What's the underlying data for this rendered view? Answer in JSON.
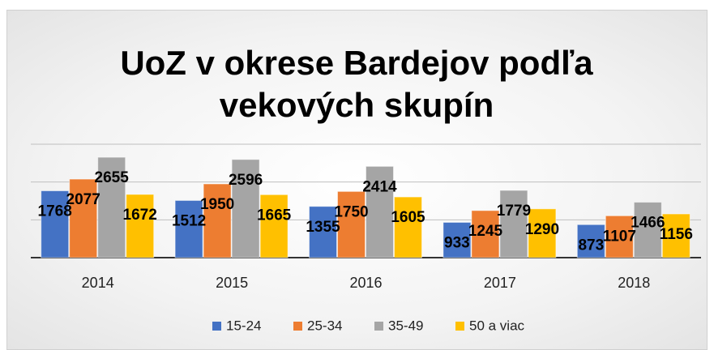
{
  "chart_data": {
    "type": "bar",
    "title": "UoZ v okrese Bardejov podľa vekových skupín",
    "categories": [
      "2014",
      "2015",
      "2016",
      "2017",
      "2018"
    ],
    "series": [
      {
        "name": "15-24",
        "color": "#4472c4",
        "values": [
          1768,
          1512,
          1355,
          933,
          873
        ]
      },
      {
        "name": "25-34",
        "color": "#ed7d31",
        "values": [
          2077,
          1950,
          1750,
          1245,
          1107
        ]
      },
      {
        "name": "35-49",
        "color": "#a5a5a5",
        "values": [
          2655,
          2596,
          2414,
          1779,
          1466
        ]
      },
      {
        "name": "50 a viac",
        "color": "#ffc000",
        "values": [
          1672,
          1665,
          1605,
          1290,
          1156
        ]
      }
    ],
    "ylim": [
      0,
      3000
    ],
    "yticks": [
      0,
      1000,
      2000,
      3000
    ],
    "grid": true,
    "legend": "bottom"
  }
}
